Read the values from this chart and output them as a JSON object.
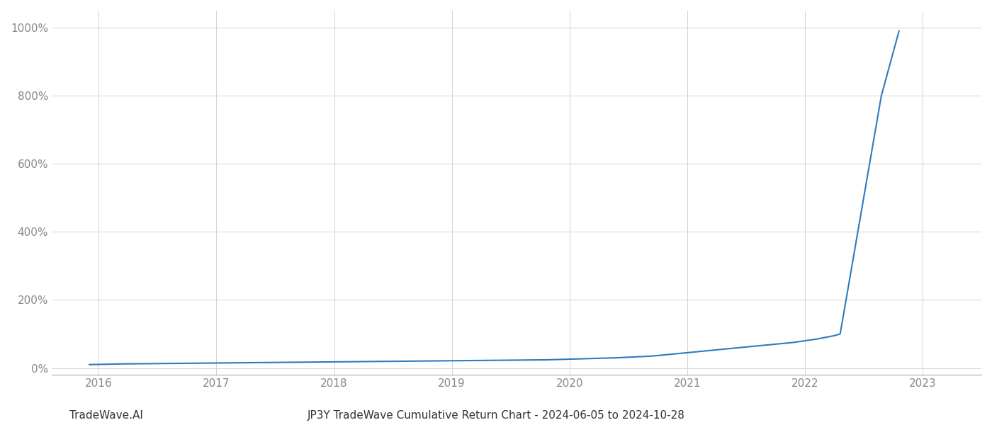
{
  "title": "JP3Y TradeWave Cumulative Return Chart - 2024-06-05 to 2024-10-28",
  "watermark": "TradeWave.AI",
  "line_color": "#2e7abf",
  "background_color": "#ffffff",
  "grid_color": "#cccccc",
  "x_years": [
    2016,
    2017,
    2018,
    2019,
    2020,
    2021,
    2022,
    2023
  ],
  "x_data": [
    2015.92,
    2016.2,
    2016.5,
    2016.8,
    2017.1,
    2017.4,
    2017.7,
    2018.0,
    2018.3,
    2018.6,
    2018.9,
    2019.2,
    2019.5,
    2019.8,
    2020.1,
    2020.4,
    2020.7,
    2021.0,
    2021.3,
    2021.6,
    2021.9,
    2022.1,
    2022.25,
    2022.3,
    2022.35,
    2022.5,
    2022.65,
    2022.8
  ],
  "y_data": [
    10,
    12,
    13,
    14,
    15,
    16,
    17,
    18,
    19,
    20,
    21,
    22,
    23,
    24,
    27,
    30,
    35,
    45,
    55,
    65,
    75,
    85,
    95,
    100,
    200,
    500,
    800,
    990
  ],
  "ylim": [
    -20,
    1050
  ],
  "xlim": [
    2015.6,
    2023.5
  ],
  "yticks": [
    0,
    200,
    400,
    600,
    800,
    1000
  ],
  "title_fontsize": 11,
  "tick_fontsize": 11,
  "watermark_fontsize": 11,
  "line_width": 1.5,
  "tick_color": "#888888",
  "bottom_text_color": "#333333",
  "spine_color": "#aaaaaa"
}
